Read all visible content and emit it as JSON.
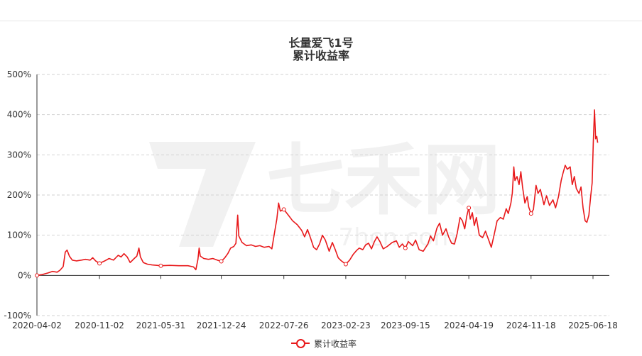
{
  "chart_data": {
    "type": "line",
    "title": "长量爱飞1号",
    "subtitle": "累计收益率",
    "watermark": {
      "text": "七禾网",
      "sub_text": "7hcn.com"
    },
    "ylim": [
      -100,
      500
    ],
    "y_ticks": [
      -100,
      0,
      100,
      200,
      300,
      400,
      500
    ],
    "y_tick_labels": [
      "-100%",
      "0%",
      "100%",
      "200%",
      "300%",
      "400%",
      "500%"
    ],
    "x_ticks": [
      "2020-04-02",
      "2020-11-02",
      "2021-05-31",
      "2021-12-24",
      "2022-07-26",
      "2023-02-23",
      "2023-09-15",
      "2024-04-19",
      "2024-11-18",
      "2025-06-18"
    ],
    "grid": true,
    "legend": "bottom-center",
    "color": "#e8191b",
    "series": [
      {
        "name": "累计收益率",
        "points": [
          [
            "2020-04-02",
            0
          ],
          [
            "2020-04-20",
            2
          ],
          [
            "2020-05-10",
            6
          ],
          [
            "2020-05-25",
            10
          ],
          [
            "2020-06-10",
            8
          ],
          [
            "2020-06-20",
            13
          ],
          [
            "2020-07-01",
            22
          ],
          [
            "2020-07-08",
            58
          ],
          [
            "2020-07-14",
            63
          ],
          [
            "2020-07-22",
            48
          ],
          [
            "2020-08-01",
            38
          ],
          [
            "2020-08-15",
            36
          ],
          [
            "2020-09-01",
            38
          ],
          [
            "2020-09-15",
            40
          ],
          [
            "2020-10-01",
            38
          ],
          [
            "2020-10-10",
            44
          ],
          [
            "2020-10-20",
            36
          ],
          [
            "2020-11-02",
            30
          ],
          [
            "2020-11-20",
            36
          ],
          [
            "2020-12-05",
            42
          ],
          [
            "2020-12-20",
            38
          ],
          [
            "2021-01-05",
            50
          ],
          [
            "2021-01-15",
            46
          ],
          [
            "2021-01-25",
            54
          ],
          [
            "2021-02-05",
            46
          ],
          [
            "2021-02-15",
            32
          ],
          [
            "2021-03-01",
            42
          ],
          [
            "2021-03-10",
            48
          ],
          [
            "2021-03-17",
            68
          ],
          [
            "2021-03-22",
            46
          ],
          [
            "2021-04-01",
            32
          ],
          [
            "2021-04-15",
            28
          ],
          [
            "2021-05-01",
            26
          ],
          [
            "2021-05-31",
            24
          ],
          [
            "2021-07-01",
            25
          ],
          [
            "2021-08-01",
            24
          ],
          [
            "2021-09-01",
            24
          ],
          [
            "2021-09-20",
            21
          ],
          [
            "2021-09-28",
            14
          ],
          [
            "2021-10-05",
            40
          ],
          [
            "2021-10-09",
            68
          ],
          [
            "2021-10-13",
            48
          ],
          [
            "2021-10-25",
            42
          ],
          [
            "2021-11-10",
            40
          ],
          [
            "2021-11-25",
            42
          ],
          [
            "2021-12-10",
            38
          ],
          [
            "2021-12-24",
            35
          ],
          [
            "2022-01-05",
            44
          ],
          [
            "2022-01-15",
            54
          ],
          [
            "2022-01-25",
            68
          ],
          [
            "2022-02-05",
            72
          ],
          [
            "2022-02-12",
            80
          ],
          [
            "2022-02-18",
            150
          ],
          [
            "2022-02-22",
            98
          ],
          [
            "2022-03-05",
            82
          ],
          [
            "2022-03-20",
            74
          ],
          [
            "2022-04-05",
            76
          ],
          [
            "2022-04-20",
            72
          ],
          [
            "2022-05-05",
            74
          ],
          [
            "2022-05-20",
            70
          ],
          [
            "2022-06-05",
            72
          ],
          [
            "2022-06-15",
            66
          ],
          [
            "2022-06-25",
            110
          ],
          [
            "2022-07-02",
            140
          ],
          [
            "2022-07-08",
            180
          ],
          [
            "2022-07-14",
            160
          ],
          [
            "2022-07-26",
            164
          ],
          [
            "2022-08-10",
            150
          ],
          [
            "2022-08-25",
            136
          ],
          [
            "2022-09-10",
            126
          ],
          [
            "2022-09-25",
            112
          ],
          [
            "2022-10-05",
            96
          ],
          [
            "2022-10-15",
            114
          ],
          [
            "2022-10-25",
            94
          ],
          [
            "2022-11-05",
            70
          ],
          [
            "2022-11-15",
            64
          ],
          [
            "2022-11-25",
            78
          ],
          [
            "2022-12-05",
            100
          ],
          [
            "2022-12-15",
            88
          ],
          [
            "2022-12-28",
            60
          ],
          [
            "2023-01-08",
            82
          ],
          [
            "2023-01-18",
            64
          ],
          [
            "2023-01-28",
            44
          ],
          [
            "2023-02-08",
            36
          ],
          [
            "2023-02-23",
            28
          ],
          [
            "2023-03-08",
            38
          ],
          [
            "2023-03-20",
            52
          ],
          [
            "2023-04-01",
            62
          ],
          [
            "2023-04-10",
            68
          ],
          [
            "2023-04-22",
            64
          ],
          [
            "2023-05-02",
            76
          ],
          [
            "2023-05-12",
            80
          ],
          [
            "2023-05-22",
            66
          ],
          [
            "2023-06-01",
            84
          ],
          [
            "2023-06-10",
            96
          ],
          [
            "2023-06-20",
            84
          ],
          [
            "2023-07-01",
            66
          ],
          [
            "2023-07-15",
            72
          ],
          [
            "2023-08-01",
            82
          ],
          [
            "2023-08-15",
            86
          ],
          [
            "2023-08-25",
            70
          ],
          [
            "2023-09-05",
            78
          ],
          [
            "2023-09-15",
            68
          ],
          [
            "2023-09-25",
            84
          ],
          [
            "2023-10-10",
            74
          ],
          [
            "2023-10-20",
            88
          ],
          [
            "2023-11-01",
            64
          ],
          [
            "2023-11-15",
            60
          ],
          [
            "2023-12-01",
            78
          ],
          [
            "2023-12-10",
            98
          ],
          [
            "2023-12-20",
            86
          ],
          [
            "2024-01-01",
            118
          ],
          [
            "2024-01-10",
            130
          ],
          [
            "2024-01-20",
            100
          ],
          [
            "2024-02-01",
            116
          ],
          [
            "2024-02-10",
            96
          ],
          [
            "2024-02-20",
            80
          ],
          [
            "2024-03-01",
            78
          ],
          [
            "2024-03-10",
            104
          ],
          [
            "2024-03-20",
            144
          ],
          [
            "2024-03-28",
            136
          ],
          [
            "2024-04-05",
            116
          ],
          [
            "2024-04-12",
            148
          ],
          [
            "2024-04-19",
            168
          ],
          [
            "2024-04-24",
            140
          ],
          [
            "2024-05-01",
            156
          ],
          [
            "2024-05-08",
            124
          ],
          [
            "2024-05-15",
            144
          ],
          [
            "2024-05-25",
            100
          ],
          [
            "2024-06-05",
            94
          ],
          [
            "2024-06-15",
            110
          ],
          [
            "2024-06-25",
            90
          ],
          [
            "2024-07-05",
            70
          ],
          [
            "2024-07-15",
            102
          ],
          [
            "2024-07-25",
            136
          ],
          [
            "2024-08-05",
            144
          ],
          [
            "2024-08-15",
            140
          ],
          [
            "2024-08-25",
            166
          ],
          [
            "2024-09-01",
            154
          ],
          [
            "2024-09-10",
            180
          ],
          [
            "2024-09-15",
            205
          ],
          [
            "2024-09-20",
            270
          ],
          [
            "2024-09-24",
            236
          ],
          [
            "2024-10-01",
            246
          ],
          [
            "2024-10-08",
            226
          ],
          [
            "2024-10-14",
            258
          ],
          [
            "2024-10-20",
            220
          ],
          [
            "2024-10-28",
            180
          ],
          [
            "2024-11-05",
            196
          ],
          [
            "2024-11-10",
            170
          ],
          [
            "2024-11-18",
            154
          ],
          [
            "2024-11-26",
            164
          ],
          [
            "2024-12-05",
            224
          ],
          [
            "2024-12-12",
            204
          ],
          [
            "2024-12-20",
            214
          ],
          [
            "2025-01-01",
            176
          ],
          [
            "2025-01-10",
            198
          ],
          [
            "2025-01-20",
            174
          ],
          [
            "2025-02-01",
            188
          ],
          [
            "2025-02-10",
            168
          ],
          [
            "2025-02-20",
            196
          ],
          [
            "2025-03-01",
            236
          ],
          [
            "2025-03-08",
            256
          ],
          [
            "2025-03-15",
            274
          ],
          [
            "2025-03-22",
            264
          ],
          [
            "2025-04-01",
            270
          ],
          [
            "2025-04-08",
            226
          ],
          [
            "2025-04-15",
            246
          ],
          [
            "2025-04-22",
            216
          ],
          [
            "2025-05-01",
            204
          ],
          [
            "2025-05-08",
            220
          ],
          [
            "2025-05-15",
            168
          ],
          [
            "2025-05-22",
            136
          ],
          [
            "2025-05-28",
            132
          ],
          [
            "2025-06-04",
            150
          ],
          [
            "2025-06-10",
            196
          ],
          [
            "2025-06-15",
            230
          ],
          [
            "2025-06-19",
            330
          ],
          [
            "2025-06-23",
            412
          ],
          [
            "2025-06-27",
            340
          ],
          [
            "2025-07-01",
            346
          ],
          [
            "2025-07-04",
            330
          ]
        ]
      }
    ]
  }
}
